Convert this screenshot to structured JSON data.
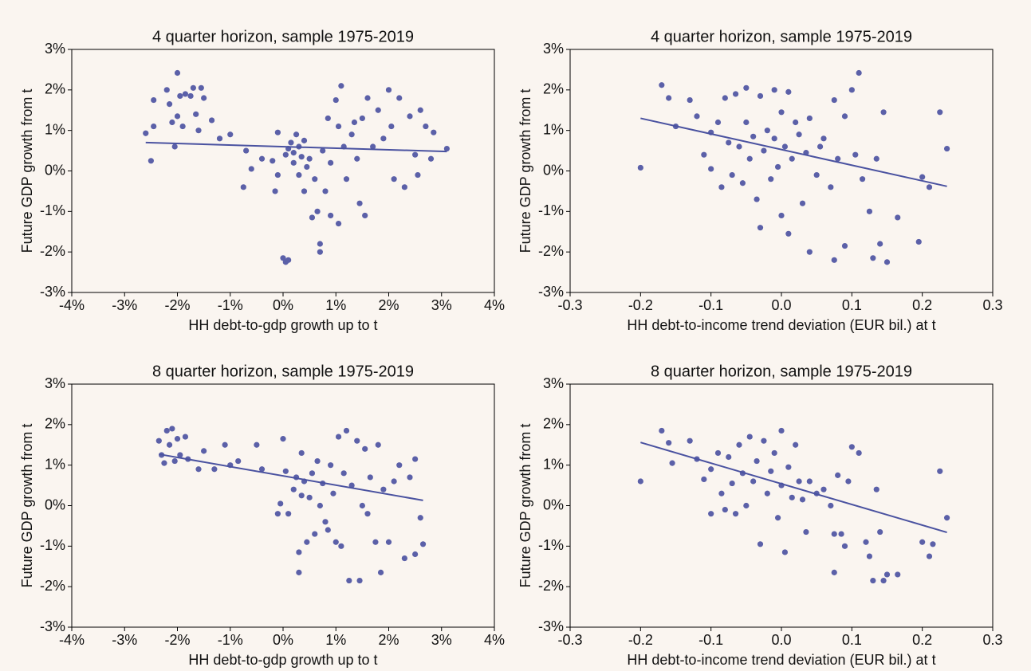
{
  "chart_data": [
    {
      "type": "scatter",
      "title": "4 quarter horizon, sample 1975-2019",
      "xlabel": "HH debt-to-gdp growth up to t",
      "ylabel": "Future GDP growth from t",
      "xlim": [
        -4,
        4
      ],
      "ylim": [
        -3,
        3
      ],
      "xticks": [
        {
          "value": -4,
          "label": "-4%"
        },
        {
          "value": -3,
          "label": "-3%"
        },
        {
          "value": -2,
          "label": "-2%"
        },
        {
          "value": -1,
          "label": "-1%"
        },
        {
          "value": 0,
          "label": "0%"
        },
        {
          "value": 1,
          "label": "1%"
        },
        {
          "value": 2,
          "label": "2%"
        },
        {
          "value": 3,
          "label": "3%"
        },
        {
          "value": 4,
          "label": "4%"
        }
      ],
      "yticks": [
        {
          "value": -3,
          "label": "-3%"
        },
        {
          "value": -2,
          "label": "-2%"
        },
        {
          "value": -1,
          "label": "-1%"
        },
        {
          "value": 0,
          "label": "0%"
        },
        {
          "value": 1,
          "label": "1%"
        },
        {
          "value": 2,
          "label": "2%"
        },
        {
          "value": 3,
          "label": "3%"
        }
      ],
      "series": [
        {
          "type": "scatter",
          "color": "#5b60a8",
          "x": [
            -2.6,
            -2.5,
            -2.45,
            -2.45,
            -2.2,
            -2.15,
            -2.1,
            -2.05,
            -2.0,
            -2.0,
            -1.95,
            -1.9,
            -1.85,
            -1.75,
            -1.7,
            -1.65,
            -1.6,
            -1.55,
            -1.5,
            -1.35,
            -1.2,
            -1.0,
            -0.7,
            -0.75,
            -0.6,
            -0.4,
            -0.2,
            -0.15,
            -0.1,
            -0.1,
            0.0,
            0.05,
            0.1,
            0.05,
            0.1,
            0.15,
            0.2,
            0.2,
            0.25,
            0.3,
            0.3,
            0.35,
            0.4,
            0.4,
            0.45,
            0.5,
            0.55,
            0.6,
            0.65,
            0.7,
            0.7,
            0.75,
            0.8,
            0.85,
            0.9,
            0.9,
            1.0,
            1.05,
            1.05,
            1.1,
            1.15,
            1.2,
            1.3,
            1.35,
            1.4,
            1.45,
            1.5,
            1.55,
            1.6,
            1.7,
            1.8,
            1.9,
            2.0,
            2.05,
            2.1,
            2.2,
            2.3,
            2.4,
            2.5,
            2.55,
            2.6,
            2.7,
            2.8,
            2.85,
            3.1
          ],
          "y": [
            0.93,
            0.25,
            1.75,
            1.1,
            2.0,
            1.65,
            1.2,
            0.6,
            2.42,
            1.35,
            1.85,
            1.1,
            1.9,
            1.85,
            2.05,
            1.4,
            1.0,
            2.05,
            1.8,
            1.25,
            0.8,
            0.9,
            0.5,
            -0.4,
            0.05,
            0.3,
            0.25,
            -0.5,
            -0.1,
            0.95,
            -2.15,
            -2.25,
            -2.2,
            0.4,
            0.55,
            0.7,
            0.45,
            0.2,
            0.9,
            0.6,
            -0.1,
            0.35,
            -0.5,
            0.75,
            0.1,
            0.3,
            -1.15,
            -0.2,
            -1.0,
            -1.8,
            -2.0,
            0.5,
            -0.5,
            1.3,
            -1.1,
            0.2,
            1.75,
            -1.3,
            1.1,
            2.1,
            0.6,
            -0.2,
            0.9,
            1.2,
            0.3,
            -0.8,
            1.3,
            -1.1,
            1.8,
            0.6,
            1.5,
            0.8,
            2.0,
            1.1,
            -0.2,
            1.8,
            -0.4,
            1.35,
            0.4,
            -0.1,
            1.5,
            1.1,
            0.3,
            0.95,
            0.55
          ]
        },
        {
          "type": "line",
          "color": "#4a52a0",
          "x": [
            -2.6,
            3.1
          ],
          "y": [
            0.7,
            0.48
          ]
        }
      ]
    },
    {
      "type": "scatter",
      "title": "4 quarter horizon, sample 1975-2019",
      "xlabel": "HH debt-to-income trend deviation (EUR bil.) at t",
      "ylabel": "Future GDP growth from t",
      "xlim": [
        -0.3,
        0.3
      ],
      "ylim": [
        -3,
        3
      ],
      "xticks": [
        -0.3,
        -0.2,
        -0.1,
        {
          "value": 0,
          "label": "0.0"
        },
        0.1,
        0.2,
        0.3
      ],
      "yticks": [
        {
          "value": -3,
          "label": "-3%"
        },
        {
          "value": -2,
          "label": "-2%"
        },
        {
          "value": -1,
          "label": "-1%"
        },
        {
          "value": 0,
          "label": "0%"
        },
        {
          "value": 1,
          "label": "1%"
        },
        {
          "value": 2,
          "label": "2%"
        },
        {
          "value": 3,
          "label": "3%"
        }
      ],
      "series": [
        {
          "type": "scatter",
          "color": "#5b60a8",
          "x": [
            -0.2,
            -0.17,
            -0.16,
            -0.15,
            -0.13,
            -0.12,
            -0.11,
            -0.1,
            -0.1,
            -0.09,
            -0.085,
            -0.08,
            -0.075,
            -0.07,
            -0.065,
            -0.06,
            -0.055,
            -0.05,
            -0.05,
            -0.045,
            -0.04,
            -0.035,
            -0.03,
            -0.03,
            -0.025,
            -0.02,
            -0.015,
            -0.01,
            -0.01,
            -0.005,
            0.0,
            0.0,
            0.005,
            0.01,
            0.01,
            0.015,
            0.02,
            0.025,
            0.03,
            0.035,
            0.04,
            0.04,
            0.05,
            0.055,
            0.06,
            0.07,
            0.075,
            0.075,
            0.08,
            0.09,
            0.09,
            0.1,
            0.105,
            0.11,
            0.115,
            0.125,
            0.13,
            0.135,
            0.14,
            0.145,
            0.15,
            0.165,
            0.195,
            0.2,
            0.21,
            0.225,
            0.235
          ],
          "y": [
            0.08,
            2.12,
            1.8,
            1.1,
            1.75,
            1.35,
            0.4,
            0.05,
            0.95,
            1.2,
            -0.4,
            1.8,
            0.7,
            -0.1,
            1.9,
            0.6,
            -0.3,
            1.2,
            2.05,
            0.3,
            0.85,
            -0.7,
            -1.4,
            1.85,
            0.5,
            1.0,
            -0.2,
            0.8,
            2.0,
            0.1,
            -1.1,
            1.45,
            0.6,
            -1.55,
            1.95,
            0.3,
            1.2,
            0.9,
            -0.8,
            0.45,
            -2.0,
            1.3,
            -0.1,
            0.6,
            0.8,
            -0.4,
            -2.2,
            1.75,
            0.3,
            -1.85,
            1.35,
            2.0,
            0.4,
            2.42,
            -0.2,
            -1.0,
            -2.15,
            0.3,
            -1.8,
            1.45,
            -2.25,
            -1.15,
            -1.75,
            -0.15,
            -0.4,
            1.45,
            0.55
          ]
        },
        {
          "type": "line",
          "color": "#4a52a0",
          "x": [
            -0.2,
            0.235
          ],
          "y": [
            1.3,
            -0.38
          ]
        }
      ]
    },
    {
      "type": "scatter",
      "title": "8 quarter horizon, sample 1975-2019",
      "xlabel": "HH debt-to-gdp growth up to t",
      "ylabel": "Future GDP growth from t",
      "xlim": [
        -4,
        4
      ],
      "ylim": [
        -3,
        3
      ],
      "xticks": [
        {
          "value": -4,
          "label": "-4%"
        },
        {
          "value": -3,
          "label": "-3%"
        },
        {
          "value": -2,
          "label": "-2%"
        },
        {
          "value": -1,
          "label": "-1%"
        },
        {
          "value": 0,
          "label": "0%"
        },
        {
          "value": 1,
          "label": "1%"
        },
        {
          "value": 2,
          "label": "2%"
        },
        {
          "value": 3,
          "label": "3%"
        },
        {
          "value": 4,
          "label": "4%"
        }
      ],
      "yticks": [
        {
          "value": -3,
          "label": "-3%"
        },
        {
          "value": -2,
          "label": "-2%"
        },
        {
          "value": -1,
          "label": "-1%"
        },
        {
          "value": 0,
          "label": "0%"
        },
        {
          "value": 1,
          "label": "1%"
        },
        {
          "value": 2,
          "label": "2%"
        },
        {
          "value": 3,
          "label": "3%"
        }
      ],
      "series": [
        {
          "type": "scatter",
          "color": "#5b60a8",
          "x": [
            -2.35,
            -2.3,
            -2.25,
            -2.2,
            -2.15,
            -2.1,
            -2.05,
            -2.0,
            -1.95,
            -1.85,
            -1.8,
            -1.6,
            -1.5,
            -1.3,
            -1.1,
            -1.0,
            -0.85,
            -0.5,
            -0.4,
            -0.1,
            -0.05,
            0.0,
            0.05,
            0.1,
            0.2,
            0.25,
            0.3,
            0.3,
            0.35,
            0.35,
            0.4,
            0.45,
            0.5,
            0.55,
            0.6,
            0.65,
            0.7,
            0.75,
            0.8,
            0.85,
            0.9,
            0.95,
            1.0,
            1.05,
            1.1,
            1.15,
            1.2,
            1.25,
            1.3,
            1.4,
            1.45,
            1.5,
            1.55,
            1.6,
            1.65,
            1.75,
            1.8,
            1.85,
            1.9,
            2.0,
            2.1,
            2.2,
            2.3,
            2.4,
            2.5,
            2.5,
            2.6,
            2.65
          ],
          "y": [
            1.6,
            1.25,
            1.05,
            1.85,
            1.5,
            1.9,
            1.1,
            1.65,
            1.25,
            1.7,
            1.15,
            0.9,
            1.35,
            0.9,
            1.5,
            1.0,
            1.1,
            1.5,
            0.9,
            -0.2,
            0.05,
            1.65,
            0.85,
            -0.2,
            0.4,
            0.7,
            -1.65,
            -1.15,
            0.25,
            1.3,
            0.6,
            -0.9,
            0.2,
            0.8,
            -0.7,
            1.1,
            0.0,
            0.55,
            -0.4,
            -0.6,
            1.0,
            0.3,
            -0.9,
            1.7,
            -1.0,
            0.8,
            1.85,
            -1.85,
            0.5,
            1.6,
            -1.85,
            0.0,
            1.4,
            -0.2,
            0.7,
            -0.9,
            1.5,
            -1.65,
            0.4,
            -0.9,
            0.6,
            1.0,
            -1.3,
            0.7,
            1.15,
            -1.2,
            -0.3,
            -0.95
          ]
        },
        {
          "type": "line",
          "color": "#4a52a0",
          "x": [
            -2.35,
            2.65
          ],
          "y": [
            1.27,
            0.13
          ]
        }
      ]
    },
    {
      "type": "scatter",
      "title": "8 quarter horizon, sample 1975-2019",
      "xlabel": "HH debt-to-income trend deviation (EUR bil.) at t",
      "ylabel": "Future GDP growth from t",
      "xlim": [
        -0.3,
        0.3
      ],
      "ylim": [
        -3,
        3
      ],
      "xticks": [
        -0.3,
        -0.2,
        -0.1,
        {
          "value": 0,
          "label": "0.0"
        },
        0.1,
        0.2,
        0.3
      ],
      "yticks": [
        {
          "value": -3,
          "label": "-3%"
        },
        {
          "value": -2,
          "label": "-2%"
        },
        {
          "value": -1,
          "label": "-1%"
        },
        {
          "value": 0,
          "label": "0%"
        },
        {
          "value": 1,
          "label": "1%"
        },
        {
          "value": 2,
          "label": "2%"
        },
        {
          "value": 3,
          "label": "3%"
        }
      ],
      "series": [
        {
          "type": "scatter",
          "color": "#5b60a8",
          "x": [
            -0.2,
            -0.17,
            -0.16,
            -0.155,
            -0.13,
            -0.12,
            -0.11,
            -0.1,
            -0.1,
            -0.09,
            -0.085,
            -0.08,
            -0.075,
            -0.07,
            -0.065,
            -0.06,
            -0.055,
            -0.05,
            -0.045,
            -0.04,
            -0.035,
            -0.03,
            -0.025,
            -0.02,
            -0.015,
            -0.01,
            -0.005,
            0.0,
            0.0,
            0.005,
            0.01,
            0.015,
            0.02,
            0.025,
            0.03,
            0.035,
            0.04,
            0.05,
            0.06,
            0.07,
            0.075,
            0.075,
            0.08,
            0.085,
            0.09,
            0.095,
            0.1,
            0.11,
            0.12,
            0.125,
            0.13,
            0.135,
            0.14,
            0.145,
            0.15,
            0.165,
            0.2,
            0.21,
            0.215,
            0.225,
            0.235
          ],
          "y": [
            0.6,
            1.85,
            1.55,
            1.05,
            1.6,
            1.15,
            0.65,
            -0.2,
            0.9,
            1.3,
            0.3,
            -0.1,
            1.2,
            0.55,
            -0.2,
            1.5,
            0.8,
            0.0,
            1.7,
            0.6,
            1.1,
            -0.95,
            1.6,
            0.3,
            0.85,
            1.3,
            -0.3,
            1.85,
            0.5,
            -1.15,
            0.95,
            0.2,
            1.5,
            0.6,
            0.15,
            -0.65,
            0.6,
            0.3,
            0.4,
            0.0,
            -1.65,
            -0.7,
            0.75,
            -0.7,
            -1.0,
            0.6,
            1.45,
            1.3,
            -0.9,
            -1.25,
            -1.85,
            0.4,
            -0.65,
            -1.85,
            -1.7,
            -1.7,
            -0.9,
            -1.25,
            -0.95,
            0.85,
            -0.3
          ]
        },
        {
          "type": "line",
          "color": "#4a52a0",
          "x": [
            -0.2,
            0.235
          ],
          "y": [
            1.56,
            -0.66
          ]
        }
      ]
    }
  ]
}
